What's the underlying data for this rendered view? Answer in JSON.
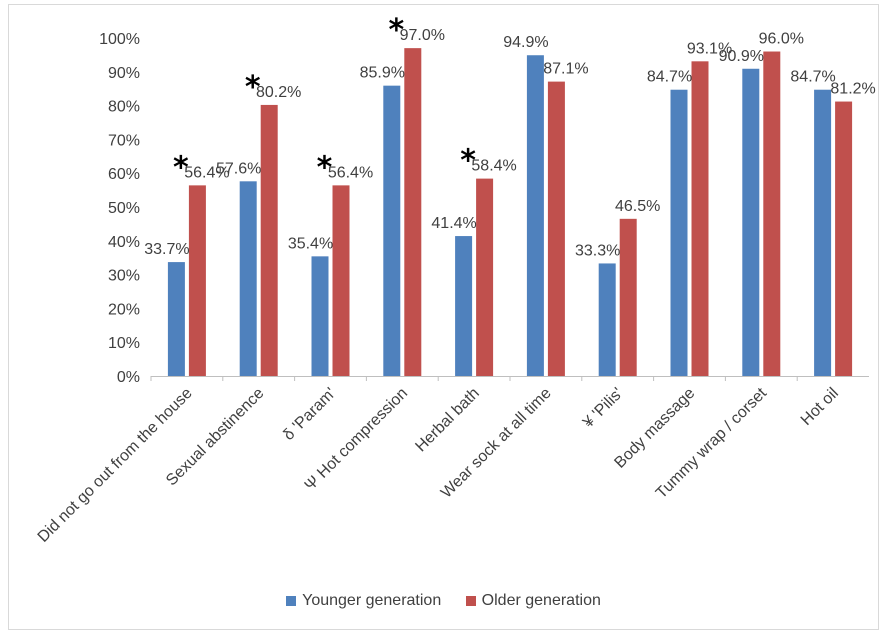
{
  "chart_data": {
    "type": "bar",
    "categories": [
      "Did not go out from the house",
      "Sexual abstinence",
      "δ 'Param'",
      "Ψ Hot compression",
      "Herbal bath",
      "Wear sock at all time",
      "¥ 'Pilis'",
      "Body massage",
      "Tummy wrap / corset",
      "Hot oil"
    ],
    "series": [
      {
        "name": "Younger generation",
        "color": "#4f81bd",
        "values": [
          33.7,
          57.6,
          35.4,
          85.9,
          41.4,
          94.9,
          33.3,
          84.7,
          90.9,
          84.7
        ],
        "labels": [
          "33.7%",
          "57.6%",
          "35.4%",
          "85.9%",
          "41.4%",
          "94.9%",
          "33.3%",
          "84.7%",
          "90.9%",
          "84.7%"
        ]
      },
      {
        "name": "Older generation",
        "color": "#c0504d",
        "values": [
          56.4,
          80.2,
          56.4,
          97.0,
          58.4,
          87.1,
          46.5,
          93.1,
          96.0,
          81.2
        ],
        "labels": [
          "56.4%",
          "80.2%",
          "56.4%",
          "97.0%",
          "58.4%",
          "87.1%",
          "46.5%",
          "93.1%",
          "96.0%",
          "81.2%"
        ]
      }
    ],
    "significance_marker": "*",
    "significant_categories": [
      0,
      1,
      2,
      3,
      4
    ],
    "yticks": [
      "0%",
      "10%",
      "20%",
      "30%",
      "40%",
      "50%",
      "60%",
      "70%",
      "80%",
      "90%",
      "100%"
    ],
    "ylim": [
      0,
      100
    ],
    "xlabel": "",
    "ylabel": "",
    "title": "",
    "grid": false,
    "legend_position": "bottom"
  }
}
